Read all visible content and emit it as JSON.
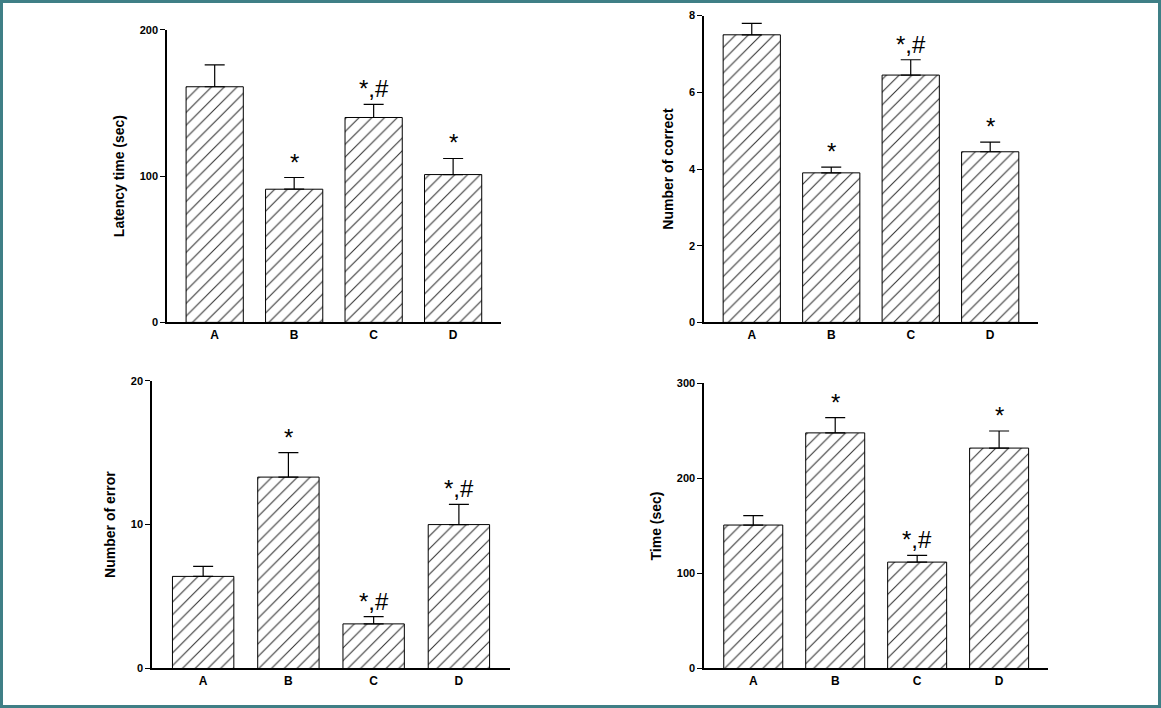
{
  "chart_data": [
    {
      "type": "bar",
      "y_label": "Latency time (sec)",
      "categories": [
        "A",
        "B",
        "C",
        "D"
      ],
      "values": [
        161,
        91,
        140,
        101
      ],
      "errors": [
        15,
        8,
        9,
        11
      ],
      "annotations": [
        null,
        "*",
        "*,#",
        "*"
      ],
      "color": "#ffffff",
      "ylim": [
        0,
        200
      ],
      "yticks": [
        0,
        100,
        200
      ]
    },
    {
      "type": "bar",
      "y_label": "Number of correct",
      "categories": [
        "A",
        "B",
        "C",
        "D"
      ],
      "values": [
        7.5,
        3.9,
        6.45,
        4.45
      ],
      "errors": [
        0.3,
        0.15,
        0.4,
        0.25
      ],
      "annotations": [
        null,
        "*",
        "*,#",
        "*"
      ],
      "color": "#ffffff",
      "ylim": [
        0,
        8
      ],
      "yticks": [
        0,
        2,
        4,
        6,
        8
      ]
    },
    {
      "type": "bar",
      "y_label": "Number of error",
      "categories": [
        "A",
        "B",
        "C",
        "D"
      ],
      "values": [
        6.4,
        13.3,
        3.1,
        10
      ],
      "errors": [
        0.7,
        1.7,
        0.5,
        1.4
      ],
      "annotations": [
        null,
        "*",
        "*,#",
        "*,#"
      ],
      "color": "#ffffff",
      "ylim": [
        0,
        20
      ],
      "yticks": [
        0,
        10,
        20
      ]
    },
    {
      "type": "bar",
      "y_label": "Time (sec)",
      "categories": [
        "A",
        "B",
        "C",
        "D"
      ],
      "values": [
        151,
        248,
        112,
        232
      ],
      "errors": [
        10,
        16,
        7,
        18
      ],
      "annotations": [
        null,
        "*",
        "*,#",
        "*"
      ],
      "color": "#ffffff",
      "ylim": [
        0,
        300
      ],
      "yticks": [
        0,
        100,
        200,
        300
      ]
    }
  ]
}
